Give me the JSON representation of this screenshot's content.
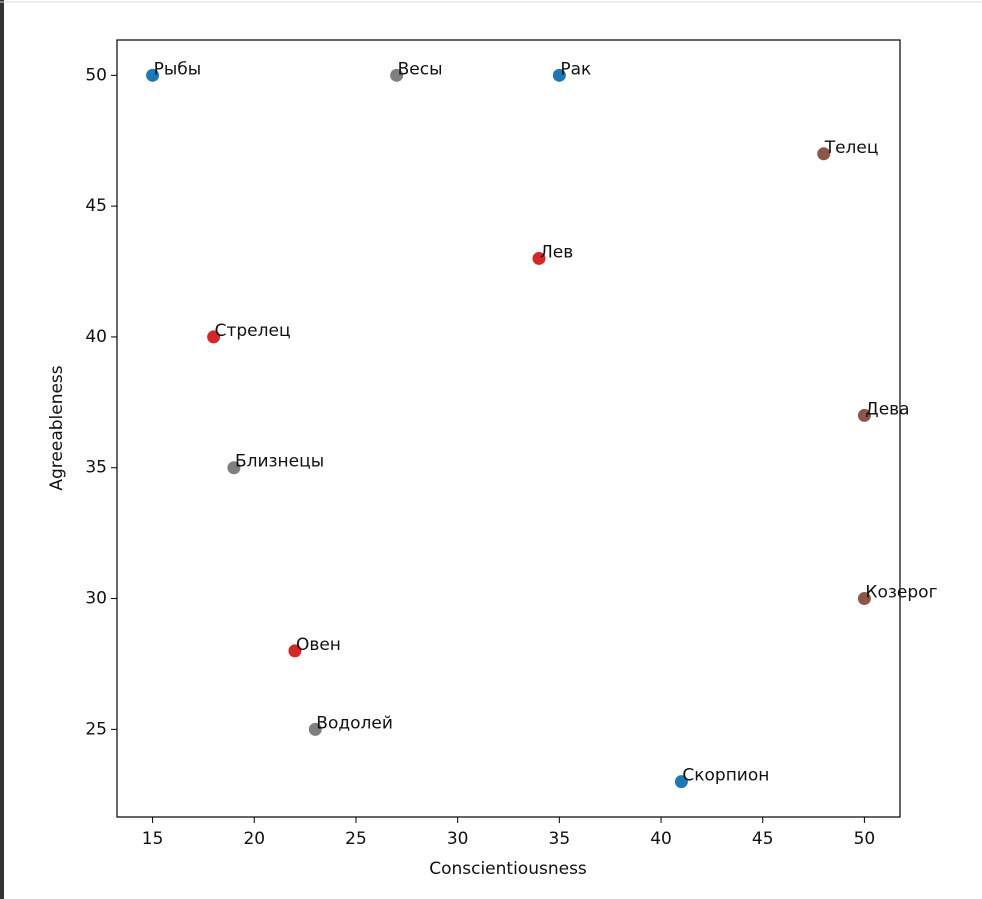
{
  "chart_data": {
    "type": "scatter",
    "xlabel": "Conscientiousness",
    "ylabel": "Agreeableness",
    "labels": [
      "Рыбы",
      "Весы",
      "Рак",
      "Телец",
      "Лев",
      "Стрелец",
      "Дева",
      "Близнецы",
      "Козерог",
      "Овен",
      "Водолей",
      "Скорпион"
    ],
    "x": [
      15,
      27,
      35,
      48,
      34,
      18,
      50,
      19,
      50,
      22,
      23,
      41
    ],
    "values": [
      50,
      50,
      50,
      47,
      43,
      40,
      37,
      35,
      30,
      28,
      25,
      23
    ],
    "colors": [
      "#1f77b4",
      "#7f7f7f",
      "#1f77b4",
      "#8c564b",
      "#d62728",
      "#d62728",
      "#8c564b",
      "#7f7f7f",
      "#8c564b",
      "#d62728",
      "#7f7f7f",
      "#1f77b4"
    ],
    "xlim": [
      13.25,
      51.75
    ],
    "xticks": [
      15,
      20,
      25,
      30,
      35,
      40,
      45,
      50
    ],
    "ylim": [
      21.65,
      51.35
    ],
    "yticks": [
      25,
      30,
      35,
      40,
      45,
      50
    ]
  }
}
